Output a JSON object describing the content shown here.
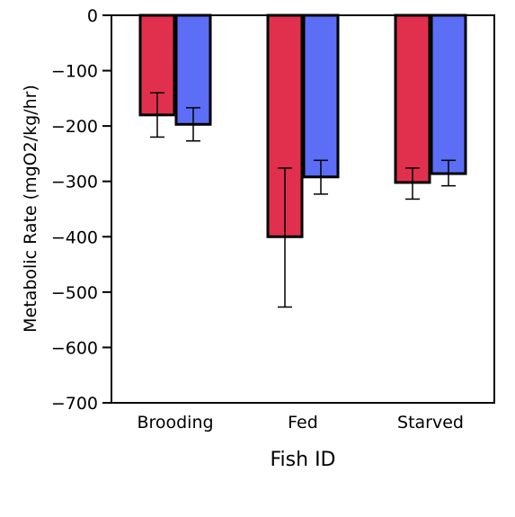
{
  "chart_data": {
    "type": "bar",
    "title": "",
    "xlabel": "Fish ID",
    "ylabel": "Metabolic Rate (mgO2/kg/hr)",
    "categories": [
      "Brooding",
      "Fed",
      "Starved"
    ],
    "ylim": [
      -700,
      0
    ],
    "yticks": [
      0,
      -100,
      -200,
      -300,
      -400,
      -500,
      -600,
      -700
    ],
    "grid": false,
    "legend": "none",
    "series": [
      {
        "color": "#e0304e",
        "values": [
          -180,
          -400,
          -302
        ],
        "error_low": [
          -220,
          -527,
          -332
        ],
        "error_high": [
          -140,
          -276,
          -276
        ]
      },
      {
        "color": "#5b6ef5",
        "values": [
          -197,
          -292,
          -286
        ],
        "error_low": [
          -227,
          -323,
          -308
        ],
        "error_high": [
          -167,
          -262,
          -262
        ]
      }
    ]
  }
}
